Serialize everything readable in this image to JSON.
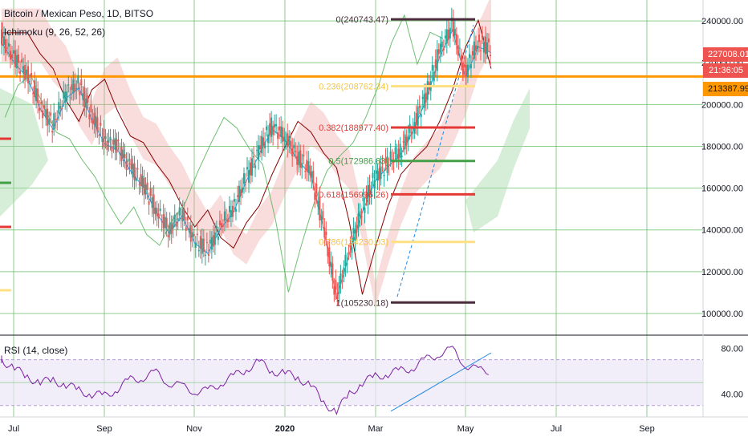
{
  "header": {
    "title": "Bitcoin / Mexican Peso, 1D, BITSO",
    "ichimoku": "Ichimoku (9, 26, 52, 26)"
  },
  "rsi_pane": {
    "label": "RSI (14, close)"
  },
  "price_scale": {
    "ticks": [
      "240000.00",
      "220000.00",
      "200000.00",
      "180000.00",
      "160000.00",
      "140000.00",
      "120000.00",
      "100000.00"
    ],
    "last_price": "227008.01",
    "countdown": "21:36:05",
    "hline_price": "213387.99"
  },
  "rsi_scale": {
    "ticks": [
      "80.00",
      "40.00"
    ]
  },
  "time_axis": {
    "labels": [
      "Jul",
      "Sep",
      "Nov",
      "2020",
      "Mar",
      "May",
      "Jul",
      "Sep"
    ]
  },
  "fib_levels": [
    {
      "label": "0(240743.47)",
      "price": 240743.47,
      "color": "#4a2c3a"
    },
    {
      "label": "0.236(208762.34)",
      "price": 208762.34,
      "color": "#ffe082"
    },
    {
      "label": "0.382(188977.40)",
      "price": 188977.4,
      "color": "#e53935"
    },
    {
      "label": "0.5(172986.83)",
      "price": 172986.83,
      "color": "#43a047"
    },
    {
      "label": "0.618(156996.26)",
      "price": 156996.26,
      "color": "#e53935"
    },
    {
      "label": "0.786(134230.03)",
      "price": 134230.03,
      "color": "#ffe082"
    },
    {
      "label": "1(105230.18)",
      "price": 105230.18,
      "color": "#4a2c3a"
    }
  ],
  "colors": {
    "up": "#26a69a",
    "down": "#ef5350",
    "rsi": "#7b1fa2",
    "cloud_bull": "#a5d6a7",
    "cloud_bear": "#ef9a9a",
    "hline": "#ff9800",
    "grid": "#5cb85c"
  },
  "chart_data": {
    "type": "candlestick",
    "title": "Bitcoin / Mexican Peso, 1D, BITSO",
    "y_range": [
      90000,
      250000
    ],
    "x_labels": [
      "Jul",
      "Sep",
      "Nov",
      "2020",
      "Mar",
      "May",
      "Jul",
      "Sep"
    ],
    "series": [
      {
        "name": "Bitcoin / Mexican Peso",
        "close_path": [
          232000,
          222000,
          215000,
          200000,
          190000,
          205000,
          210000,
          195000,
          183000,
          180000,
          170000,
          162000,
          150000,
          140000,
          148000,
          135000,
          130000,
          142000,
          150000,
          165000,
          178000,
          190000,
          185000,
          175000,
          168000,
          142000,
          108000,
          130000,
          150000,
          165000,
          172000,
          178000,
          190000,
          205000,
          225000,
          238000,
          215000,
          230000,
          227008
        ]
      },
      {
        "name": "RSI (14, close)",
        "values": [
          70,
          62,
          55,
          50,
          52,
          48,
          43,
          40,
          38,
          45,
          52,
          55,
          58,
          50,
          46,
          43,
          42,
          50,
          55,
          62,
          68,
          60,
          58,
          54,
          48,
          32,
          25,
          40,
          50,
          55,
          58,
          60,
          64,
          70,
          76,
          78,
          66,
          60,
          61
        ]
      }
    ],
    "hline": 213387.99,
    "rsi_range": [
      20,
      90
    ]
  }
}
